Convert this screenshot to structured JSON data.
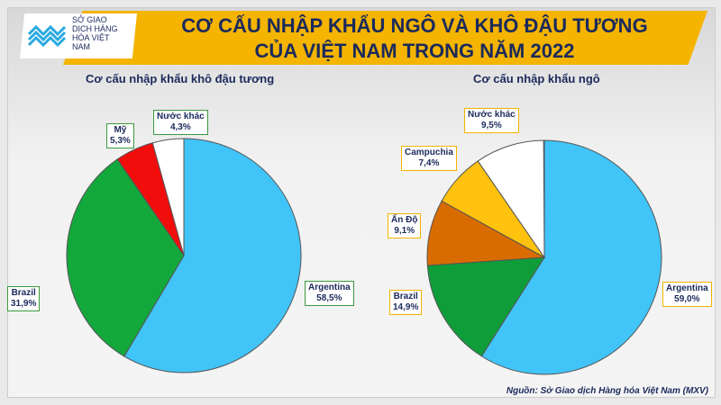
{
  "header": {
    "title_line1": "CƠ CẤU NHẬP KHẨU NGÔ VÀ KHÔ ĐẬU TƯƠNG",
    "title_line2": "CỦA VIỆT NAM TRONG NĂM 2022",
    "logo_text": "SỞ GIAO DỊCH HÀNG HÓA VIỆT NAM"
  },
  "source": "Nguồn: Sở Giao dịch Hàng hóa Việt Nam (MXV)",
  "chart_data": [
    {
      "type": "pie",
      "title": "Cơ cấu nhập khẩu khô đậu tương",
      "start": "12 o'clock clockwise",
      "slices": [
        {
          "label": "Argentina",
          "value": 58.5,
          "text": "58,5%",
          "color": "#41c4f8"
        },
        {
          "label": "Brazil",
          "value": 31.9,
          "text": "31,9%",
          "color": "#13a83c"
        },
        {
          "label": "Mỹ",
          "value": 5.3,
          "text": "5,3%",
          "color": "#f20d0d"
        },
        {
          "label": "Nước khác",
          "value": 4.3,
          "text": "4,3%",
          "color": "#ffffff"
        }
      ]
    },
    {
      "type": "pie",
      "title": "Cơ cấu nhập khẩu ngô",
      "start": "12 o'clock clockwise",
      "slices": [
        {
          "label": "Argentina",
          "value": 59.0,
          "text": "59,0%",
          "color": "#41c4f8"
        },
        {
          "label": "Brazil",
          "value": 14.9,
          "text": "14,9%",
          "color": "#0f9d3a"
        },
        {
          "label": "Ấn Độ",
          "value": 9.1,
          "text": "9,1%",
          "color": "#d96c00"
        },
        {
          "label": "Campuchia",
          "value": 7.4,
          "text": "7,4%",
          "color": "#ffc20e"
        },
        {
          "label": "Nước khác",
          "value": 9.5,
          "text": "9,5%",
          "color": "#ffffff"
        }
      ]
    }
  ]
}
